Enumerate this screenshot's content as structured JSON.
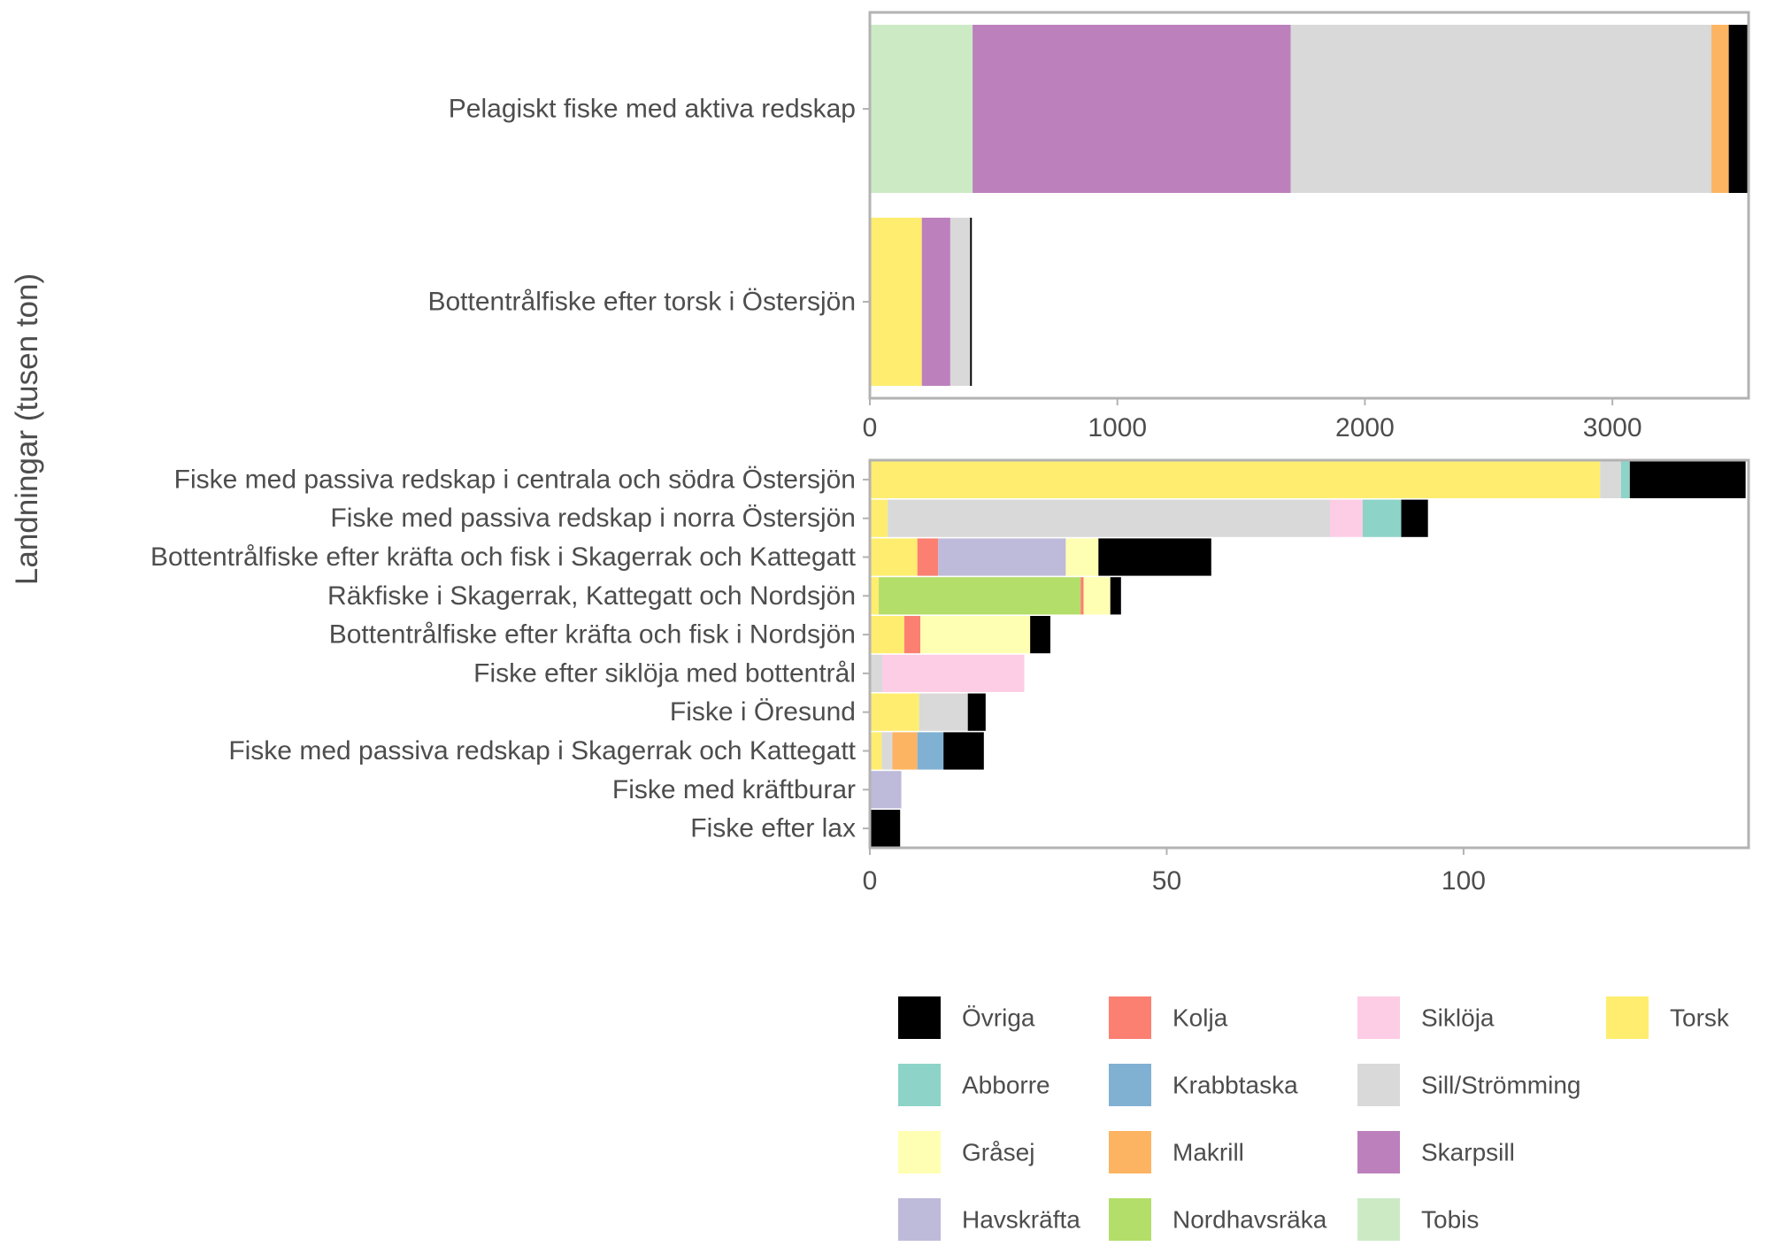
{
  "chart_data": {
    "type": "bar",
    "orientation": "horizontal",
    "stacked": true,
    "ylabel": "Landningar (tusen ton)",
    "colors": {
      "Torsk": "#FFED6F",
      "Kolja": "#FB8072",
      "Gråsej": "#FFFFB3",
      "Havskräfta": "#BEBADA",
      "Nordhavsräka": "#B3DE69",
      "Siklöja": "#FCCDE5",
      "Sill/Strömming": "#D9D9D9",
      "Abborre": "#8DD3C7",
      "Krabbtaska": "#80B1D3",
      "Makrill": "#FDB462",
      "Skarpsill": "#BC80BD",
      "Tobis": "#CCEBC5",
      "Övriga": "#000000"
    },
    "legend": {
      "position": "bottom-right",
      "columns": [
        [
          "Övriga",
          "Abborre",
          "Gråsej",
          "Havskräfta"
        ],
        [
          "Kolja",
          "Krabbtaska",
          "Makrill",
          "Nordhavsräka"
        ],
        [
          "Siklöja",
          "Sill/Strömming",
          "Skarpsill",
          "Tobis"
        ],
        [
          "Torsk"
        ]
      ]
    },
    "panels": [
      {
        "xlim": [
          0,
          3550
        ],
        "xticks": [
          0,
          1000,
          2000,
          3000
        ],
        "xtick_labels": [
          "0",
          "1000",
          "2000",
          "3000"
        ],
        "categories": [
          {
            "label": "Pelagiskt fiske med aktiva redskap",
            "segments": [
              {
                "species": "Tobis",
                "value": 415
              },
              {
                "species": "Skarpsill",
                "value": 1285
              },
              {
                "species": "Sill/Strömming",
                "value": 1700
              },
              {
                "species": "Makrill",
                "value": 70
              },
              {
                "species": "Övriga",
                "value": 80
              }
            ]
          },
          {
            "label": "Bottentrålfiske efter torsk i Östersjön",
            "segments": [
              {
                "species": "Torsk",
                "value": 210
              },
              {
                "species": "Skarpsill",
                "value": 115
              },
              {
                "species": "Sill/Strömming",
                "value": 80
              },
              {
                "species": "Övriga",
                "value": 7
              }
            ]
          }
        ]
      },
      {
        "xlim": [
          0,
          148
        ],
        "xticks": [
          0,
          50,
          100
        ],
        "xtick_labels": [
          "0",
          "50",
          "100"
        ],
        "categories": [
          {
            "label": "Fiske med passiva redskap i centrala och södra Östersjön",
            "segments": [
              {
                "species": "Torsk",
                "value": 123
              },
              {
                "species": "Sill/Strömming",
                "value": 3.5
              },
              {
                "species": "Abborre",
                "value": 1.5
              },
              {
                "species": "Övriga",
                "value": 19.5
              }
            ]
          },
          {
            "label": "Fiske med passiva redskap i norra Östersjön",
            "segments": [
              {
                "species": "Torsk",
                "value": 3
              },
              {
                "species": "Sill/Strömming",
                "value": 74.5
              },
              {
                "species": "Siklöja",
                "value": 5.5
              },
              {
                "species": "Abborre",
                "value": 6.5
              },
              {
                "species": "Övriga",
                "value": 4.5
              }
            ]
          },
          {
            "label": "Bottentrålfiske efter kräfta och fisk i Skagerrak och Kattegatt",
            "segments": [
              {
                "species": "Torsk",
                "value": 8
              },
              {
                "species": "Kolja",
                "value": 3.5
              },
              {
                "species": "Havskräfta",
                "value": 21.5
              },
              {
                "species": "Gråsej",
                "value": 5.5
              },
              {
                "species": "Övriga",
                "value": 19
              }
            ]
          },
          {
            "label": "Räkfiske i Skagerrak, Kattegatt och Nordsjön",
            "segments": [
              {
                "species": "Torsk",
                "value": 1.5
              },
              {
                "species": "Nordhavsräka",
                "value": 34
              },
              {
                "species": "Kolja",
                "value": 0.5
              },
              {
                "species": "Gråsej",
                "value": 4.5
              },
              {
                "species": "Övriga",
                "value": 1.8
              }
            ]
          },
          {
            "label": "Bottentrålfiske efter kräfta och fisk i Nordsjön",
            "segments": [
              {
                "species": "Torsk",
                "value": 5.8
              },
              {
                "species": "Kolja",
                "value": 2.7
              },
              {
                "species": "Gråsej",
                "value": 18.5
              },
              {
                "species": "Övriga",
                "value": 3.4
              }
            ]
          },
          {
            "label": "Fiske efter siklöja med bottentrål",
            "segments": [
              {
                "species": "Sill/Strömming",
                "value": 2.1
              },
              {
                "species": "Siklöja",
                "value": 23.9
              }
            ]
          },
          {
            "label": "Fiske i Öresund",
            "segments": [
              {
                "species": "Torsk",
                "value": 8.3
              },
              {
                "species": "Sill/Strömming",
                "value": 8.2
              },
              {
                "species": "Övriga",
                "value": 3
              }
            ]
          },
          {
            "label": "Fiske med passiva redskap i Skagerrak och Kattegatt",
            "segments": [
              {
                "species": "Torsk",
                "value": 2
              },
              {
                "species": "Sill/Strömming",
                "value": 1.8
              },
              {
                "species": "Makrill",
                "value": 4.2
              },
              {
                "species": "Krabbtaska",
                "value": 4.4
              },
              {
                "species": "Övriga",
                "value": 6.8
              }
            ]
          },
          {
            "label": "Fiske med kräftburar",
            "segments": [
              {
                "species": "Havskräfta",
                "value": 5.3
              }
            ]
          },
          {
            "label": "Fiske efter lax",
            "segments": [
              {
                "species": "Övriga",
                "value": 5.1
              }
            ]
          }
        ]
      }
    ]
  }
}
